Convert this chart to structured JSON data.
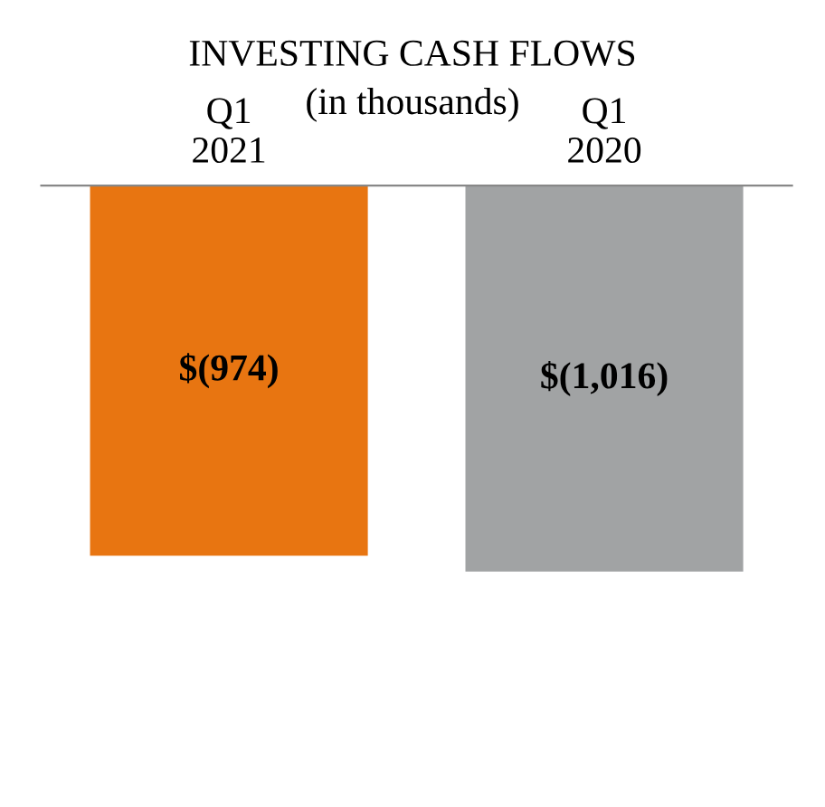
{
  "chart_data": {
    "type": "bar",
    "title": "INVESTING CASH FLOWS",
    "subtitle": "(in thousands)",
    "categories": [
      "Q1\n2021",
      "Q1\n2020"
    ],
    "values": [
      -974,
      -1016
    ],
    "colors": [
      "#e87511",
      "#a1a3a4"
    ],
    "value_labels": [
      "$(974)",
      "$(1,016)"
    ],
    "tick_labels": "x",
    "grid": false,
    "legend": false
  }
}
